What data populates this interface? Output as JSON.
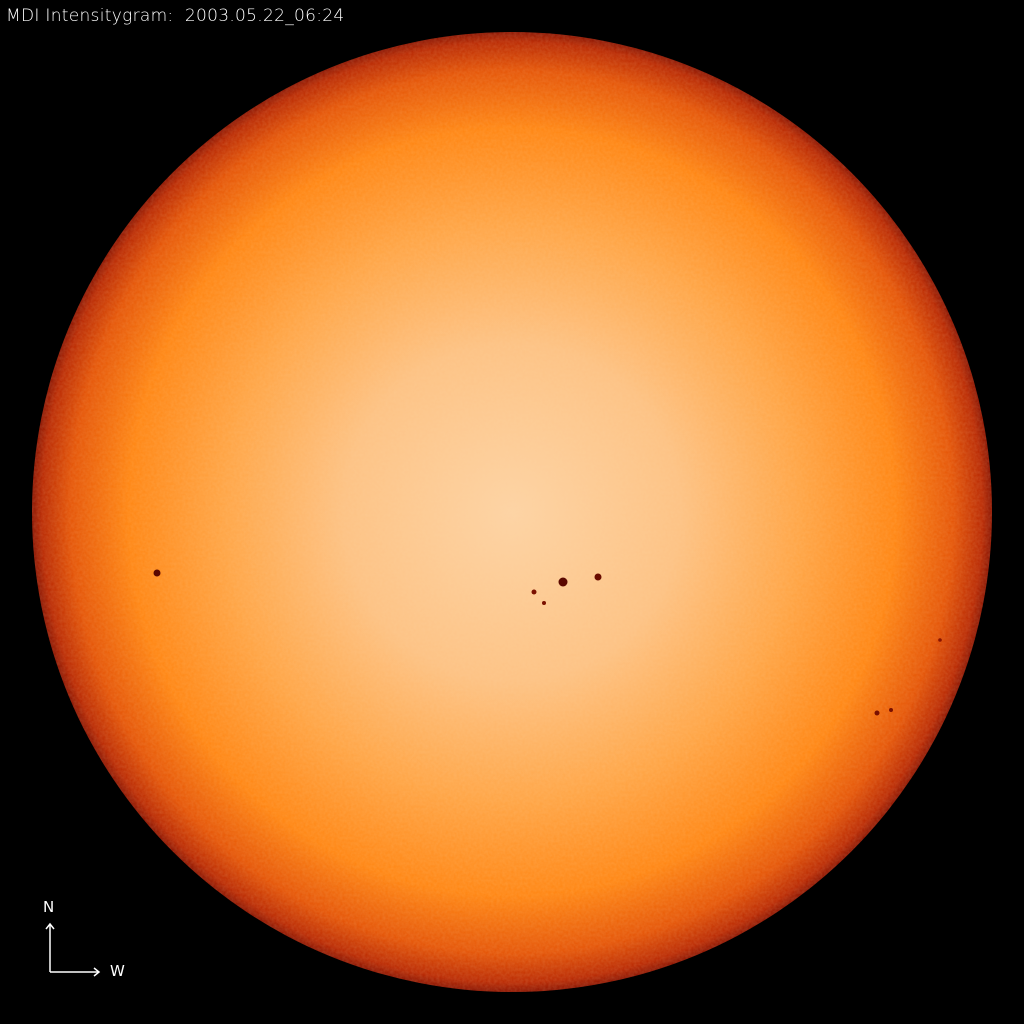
{
  "title": "MDI Intensitygram:  2003.05.22_06:24",
  "compass": {
    "north_label": "N",
    "west_label": "W"
  },
  "colors": {
    "background": "#000000",
    "disk_center": "#fdd3a4",
    "disk_mid": "#ff8c14",
    "limb": "#9a1600",
    "sunspot": "#5a0800"
  }
}
